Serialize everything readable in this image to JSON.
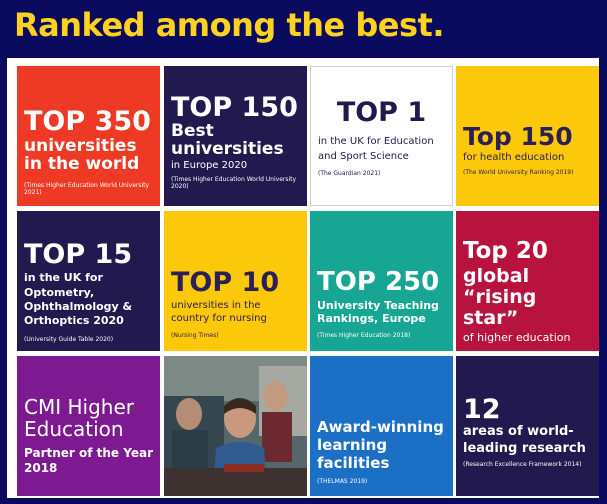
{
  "headline": "Ranked among the best.",
  "tiles": [
    {
      "big": "TOP 350",
      "mid": "universities in the world",
      "src": "(Times Higher Education World University 2021)"
    },
    {
      "big": "TOP 150",
      "mid": "Best universities",
      "lite": "in Europe 2020",
      "src": "(Times Higher Education World University 2020)"
    },
    {
      "big": "TOP 1",
      "lite": "in the UK for Education and Sport Science",
      "src": "(The Guardian 2021)"
    },
    {
      "big": "Top 150",
      "lite": "for health education",
      "src": "(The World University Ranking 2019)"
    },
    {
      "big": "TOP 15",
      "mid": "in the UK for Optometry, Ophthalmology & Orthoptics 2020",
      "src": "(University Guide Table 2020)"
    },
    {
      "big": "TOP 10",
      "lite": "universities in the country for nursing",
      "src": "(Nursing Times)"
    },
    {
      "big": "TOP 250",
      "mid": "University Teaching Rankings, Europe",
      "src": "(Times Higher Education 2018)"
    },
    {
      "big": "Top 20",
      "mid": "global “rising star”",
      "lite": "of higher education"
    },
    {
      "big": "CMI Higher Education",
      "mid": "Partner of the Year 2018"
    },
    {},
    {
      "mid": "Award-winning learning facilities",
      "src": "(THELMAS 2019)"
    },
    {
      "big": "12",
      "mid": "areas of world-leading research",
      "src": "(Research Excellence Framework 2014)"
    }
  ]
}
